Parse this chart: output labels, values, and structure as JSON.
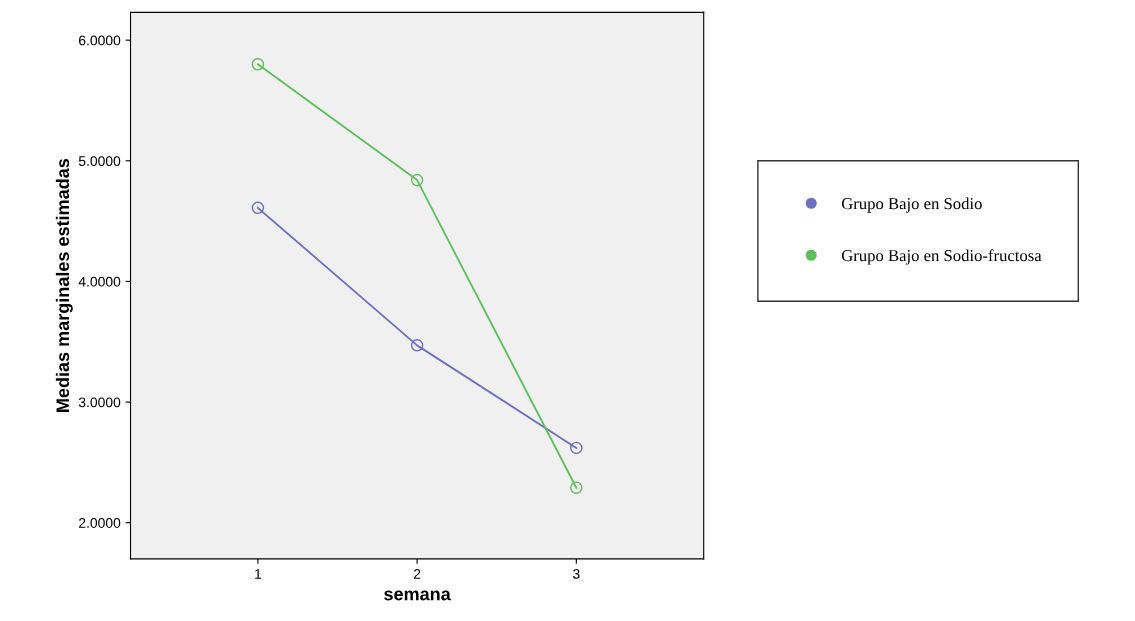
{
  "chart_data": {
    "type": "line",
    "xlabel": "semana",
    "ylabel": "Medias marginales estimadas",
    "categories": [
      "1",
      "2",
      "3"
    ],
    "series": [
      {
        "name": "Grupo Bajo en Sodio",
        "color": "#6b70c0",
        "values": [
          4.61,
          3.47,
          2.62
        ]
      },
      {
        "name": "Grupo Bajo en Sodio-fructosa",
        "color": "#5cbf5c",
        "values": [
          5.8,
          4.84,
          2.29
        ]
      }
    ],
    "ylim": [
      1.7,
      6.23
    ],
    "yticks": [
      {
        "value": 2,
        "label": "2.0000"
      },
      {
        "value": 3,
        "label": "3.0000"
      },
      {
        "value": 4,
        "label": "4.0000"
      },
      {
        "value": 5,
        "label": "5.0000"
      },
      {
        "value": 6,
        "label": "6.0000"
      }
    ],
    "marker": "circle",
    "line_style": "solid",
    "grid": false,
    "legend": "right"
  }
}
